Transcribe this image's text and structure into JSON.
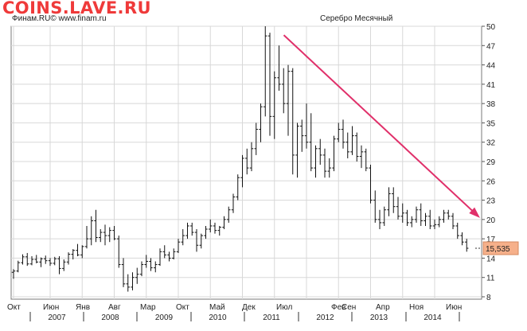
{
  "watermark": "COINS.LAVE.RU",
  "source_label": "Финам.RU© www.finam.ru",
  "colors": {
    "bars": "#111111",
    "grid": "#d8d8d8",
    "trend_arrow": "#e0306a",
    "last_price_box": "#f6b08a",
    "watermark": "#ef3a3a"
  },
  "chart_data": {
    "type": "bar",
    "style": "ohlc",
    "title": "Серебро Месячный",
    "ylim": [
      8,
      50
    ],
    "yticks": [
      8,
      11,
      14,
      17,
      20,
      23,
      26,
      29,
      32,
      35,
      38,
      41,
      44,
      47,
      50
    ],
    "grid": true,
    "last_price": "15,535",
    "x_month_labels": [
      "Окт",
      "Июн",
      "Янв",
      "Авг",
      "Мар",
      "Окт",
      "Май",
      "Дек",
      "Июл",
      "Фев",
      "Сен",
      "Апр",
      "Ноя",
      "Июн"
    ],
    "x_year_labels": [
      "2007",
      "2008",
      "2009",
      "2010",
      "2011",
      "2012",
      "2013",
      "2014"
    ],
    "trend_line": {
      "from": {
        "bar": 58,
        "value": 48.5
      },
      "to": {
        "bar": 101,
        "value": 20.5
      }
    },
    "series": [
      {
        "ohlc": [
          [
            11.8,
            12.3,
            10.8,
            12.0
          ],
          [
            12.0,
            13.6,
            11.8,
            13.3
          ],
          [
            13.3,
            14.6,
            13.0,
            14.2
          ],
          [
            14.2,
            14.8,
            12.8,
            13.1
          ],
          [
            13.1,
            14.3,
            12.9,
            13.8
          ],
          [
            13.8,
            14.5,
            13.2,
            13.4
          ],
          [
            13.4,
            14.1,
            12.6,
            13.9
          ],
          [
            13.9,
            14.4,
            13.1,
            13.6
          ],
          [
            13.6,
            14.0,
            12.8,
            13.2
          ],
          [
            13.2,
            14.2,
            12.9,
            13.9
          ],
          [
            13.9,
            14.3,
            11.5,
            12.4
          ],
          [
            12.4,
            13.8,
            12.0,
            13.4
          ],
          [
            13.4,
            14.9,
            13.0,
            14.6
          ],
          [
            14.6,
            15.4,
            13.8,
            15.2
          ],
          [
            15.2,
            16.2,
            14.3,
            14.5
          ],
          [
            14.5,
            16.0,
            14.0,
            15.8
          ],
          [
            15.8,
            19.0,
            15.5,
            17.0
          ],
          [
            17.0,
            20.5,
            16.0,
            19.8
          ],
          [
            19.8,
            21.5,
            16.5,
            17.2
          ],
          [
            17.2,
            18.5,
            16.5,
            18.0
          ],
          [
            18.0,
            19.2,
            16.0,
            17.5
          ],
          [
            17.5,
            18.8,
            16.5,
            18.3
          ],
          [
            18.3,
            19.0,
            16.8,
            17.0
          ],
          [
            17.0,
            17.5,
            12.5,
            13.0
          ],
          [
            13.0,
            14.0,
            9.5,
            10.0
          ],
          [
            10.0,
            11.5,
            8.8,
            9.5
          ],
          [
            9.5,
            11.8,
            9.0,
            11.0
          ],
          [
            11.0,
            12.5,
            10.0,
            11.5
          ],
          [
            11.5,
            13.5,
            11.2,
            13.0
          ],
          [
            13.0,
            14.5,
            12.5,
            13.5
          ],
          [
            13.5,
            14.0,
            12.0,
            12.5
          ],
          [
            12.5,
            13.5,
            11.8,
            13.0
          ],
          [
            13.0,
            15.5,
            12.8,
            15.0
          ],
          [
            15.0,
            16.0,
            14.0,
            14.5
          ],
          [
            14.5,
            15.0,
            13.5,
            14.0
          ],
          [
            14.0,
            15.5,
            13.8,
            15.0
          ],
          [
            15.0,
            17.0,
            14.8,
            16.5
          ],
          [
            16.5,
            18.5,
            16.0,
            17.5
          ],
          [
            17.5,
            19.5,
            17.0,
            19.0
          ],
          [
            19.0,
            19.5,
            17.5,
            18.0
          ],
          [
            18.0,
            18.5,
            15.0,
            16.0
          ],
          [
            16.0,
            17.8,
            15.5,
            17.5
          ],
          [
            17.5,
            19.0,
            17.0,
            18.5
          ],
          [
            18.5,
            20.0,
            18.0,
            19.0
          ],
          [
            19.0,
            19.5,
            17.8,
            18.3
          ],
          [
            18.3,
            19.0,
            17.5,
            18.8
          ],
          [
            18.8,
            20.5,
            18.5,
            20.0
          ],
          [
            20.0,
            22.0,
            19.5,
            21.5
          ],
          [
            21.5,
            24.0,
            21.0,
            23.5
          ],
          [
            23.5,
            27.0,
            23.0,
            26.5
          ],
          [
            26.5,
            30.0,
            25.0,
            29.5
          ],
          [
            29.5,
            31.0,
            27.0,
            28.0
          ],
          [
            28.0,
            32.0,
            27.5,
            31.0
          ],
          [
            31.0,
            35.0,
            30.0,
            34.0
          ],
          [
            34.0,
            38.0,
            32.0,
            37.5
          ],
          [
            37.5,
            50.0,
            36.0,
            48.5
          ],
          [
            48.5,
            49.0,
            33.0,
            36.0
          ],
          [
            36.0,
            43.0,
            32.5,
            42.0
          ],
          [
            42.0,
            47.0,
            40.0,
            41.0
          ],
          [
            41.0,
            43.5,
            36.5,
            38.0
          ],
          [
            38.0,
            44.0,
            33.0,
            43.0
          ],
          [
            43.0,
            43.5,
            27.0,
            30.0
          ],
          [
            30.0,
            35.0,
            26.5,
            34.5
          ],
          [
            34.5,
            35.5,
            30.5,
            33.0
          ],
          [
            33.0,
            38.0,
            31.0,
            32.0
          ],
          [
            32.0,
            36.5,
            27.5,
            28.0
          ],
          [
            28.0,
            31.5,
            26.5,
            31.0
          ],
          [
            31.0,
            32.5,
            28.5,
            30.0
          ],
          [
            30.0,
            31.0,
            26.5,
            27.5
          ],
          [
            27.5,
            29.5,
            26.5,
            28.0
          ],
          [
            28.0,
            33.0,
            27.5,
            32.5
          ],
          [
            32.5,
            35.0,
            32.0,
            34.0
          ],
          [
            34.0,
            35.5,
            31.0,
            32.0
          ],
          [
            32.0,
            33.5,
            29.5,
            30.5
          ],
          [
            30.5,
            34.5,
            30.0,
            33.0
          ],
          [
            33.0,
            33.5,
            29.0,
            29.8
          ],
          [
            29.8,
            31.5,
            28.0,
            30.5
          ],
          [
            30.5,
            31.0,
            27.5,
            28.0
          ],
          [
            28.0,
            28.5,
            22.5,
            23.0
          ],
          [
            23.0,
            24.5,
            19.5,
            20.0
          ],
          [
            20.0,
            21.5,
            18.5,
            19.5
          ],
          [
            19.5,
            22.0,
            19.0,
            21.5
          ],
          [
            21.5,
            25.0,
            20.5,
            24.0
          ],
          [
            24.0,
            25.0,
            21.0,
            22.0
          ],
          [
            22.0,
            23.5,
            20.0,
            20.5
          ],
          [
            20.5,
            22.5,
            19.5,
            21.0
          ],
          [
            21.0,
            21.5,
            19.0,
            19.5
          ],
          [
            19.5,
            20.5,
            18.8,
            20.0
          ],
          [
            20.0,
            22.0,
            19.5,
            21.5
          ],
          [
            21.5,
            22.5,
            19.0,
            19.8
          ],
          [
            19.8,
            21.0,
            19.0,
            20.5
          ],
          [
            20.5,
            21.5,
            18.5,
            19.0
          ],
          [
            19.0,
            20.0,
            18.5,
            19.2
          ],
          [
            19.2,
            20.5,
            18.8,
            20.0
          ],
          [
            20.0,
            21.5,
            19.5,
            21.0
          ],
          [
            21.0,
            21.5,
            20.0,
            20.5
          ],
          [
            20.5,
            21.0,
            18.5,
            19.0
          ],
          [
            19.0,
            19.5,
            17.0,
            17.5
          ],
          [
            17.5,
            18.0,
            16.0,
            16.5
          ],
          [
            16.5,
            17.0,
            15.0,
            15.535
          ]
        ]
      }
    ]
  }
}
